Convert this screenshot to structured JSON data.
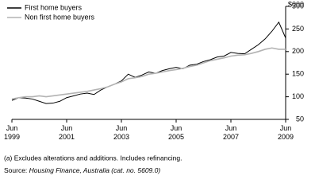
{
  "chart_data": {
    "type": "line",
    "y_unit": "$000",
    "x": [
      "Jun 1999",
      "Sep 1999",
      "Dec 1999",
      "Mar 2000",
      "Jun 2000",
      "Sep 2000",
      "Dec 2000",
      "Mar 2001",
      "Jun 2001",
      "Sep 2001",
      "Dec 2001",
      "Mar 2002",
      "Jun 2002",
      "Sep 2002",
      "Dec 2002",
      "Mar 2003",
      "Jun 2003",
      "Sep 2003",
      "Dec 2003",
      "Mar 2004",
      "Jun 2004",
      "Sep 2004",
      "Dec 2004",
      "Mar 2005",
      "Jun 2005",
      "Sep 2005",
      "Dec 2005",
      "Mar 2006",
      "Jun 2006",
      "Sep 2006",
      "Dec 2006",
      "Mar 2007",
      "Jun 2007",
      "Sep 2007",
      "Dec 2007",
      "Mar 2008",
      "Jun 2008",
      "Sep 2008",
      "Dec 2008",
      "Mar 2009",
      "Jun 2009"
    ],
    "series": [
      {
        "name": "First home buyers",
        "color": "#000000",
        "values": [
          92,
          98,
          97,
          95,
          90,
          85,
          86,
          90,
          98,
          102,
          106,
          108,
          105,
          115,
          122,
          128,
          135,
          150,
          143,
          148,
          155,
          152,
          158,
          162,
          165,
          162,
          170,
          172,
          178,
          182,
          188,
          190,
          198,
          196,
          195,
          205,
          215,
          228,
          245,
          265,
          230
        ]
      },
      {
        "name": "Non first home buyers",
        "color": "#b3b3b3",
        "values": [
          95,
          98,
          100,
          100,
          102,
          100,
          102,
          104,
          106,
          108,
          110,
          112,
          115,
          118,
          122,
          128,
          133,
          140,
          142,
          145,
          150,
          152,
          155,
          158,
          160,
          163,
          167,
          170,
          175,
          180,
          183,
          186,
          190,
          192,
          193,
          196,
          200,
          205,
          208,
          205,
          205
        ]
      }
    ],
    "xticks": [
      "Jun 1999",
      "Jun 2001",
      "Jun 2003",
      "Jun 2005",
      "Jun 2007",
      "Jun 2009"
    ],
    "ylim": [
      50,
      300
    ],
    "yticks": [
      50,
      100,
      150,
      200,
      250,
      300
    ],
    "legend": "top-left",
    "footnote": "(a) Excludes alterations and additions. Includes refinancing.",
    "source_label": "Source:",
    "source": "Housing Finance, Australia (cat. no. 5609.0)"
  }
}
